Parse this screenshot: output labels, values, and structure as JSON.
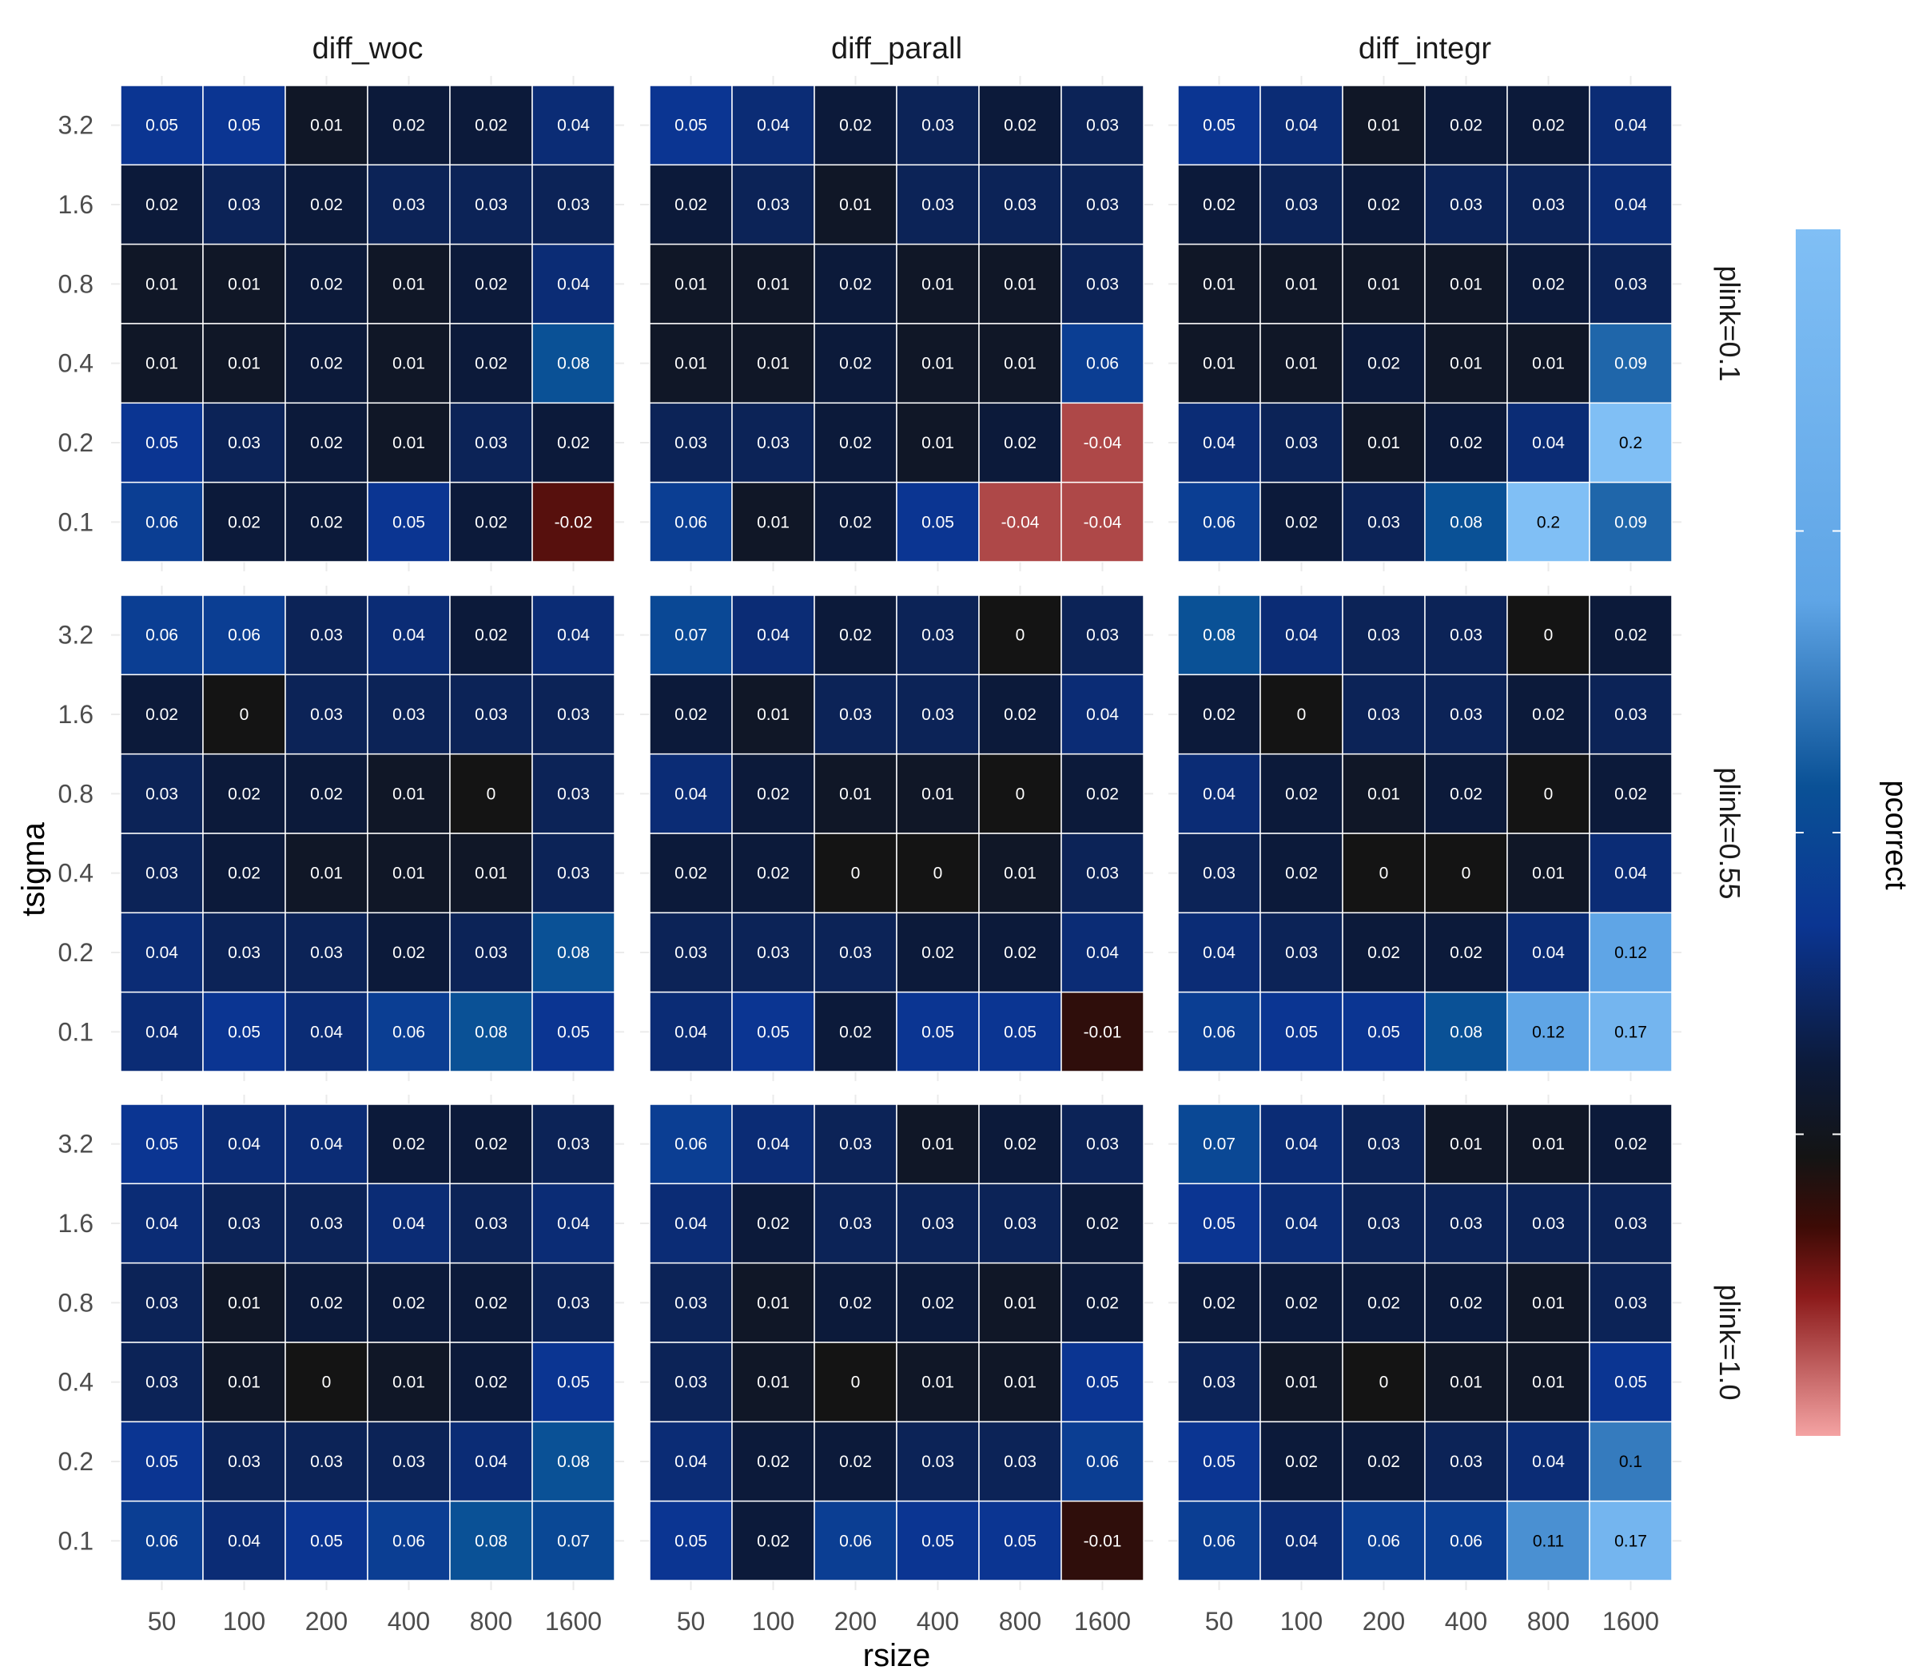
{
  "chart_data": {
    "type": "heatmap",
    "xlabel": "rsize",
    "ylabel": "tsigma",
    "x_categories": [
      "50",
      "100",
      "200",
      "400",
      "800",
      "1600"
    ],
    "y_categories": [
      "3.2",
      "1.6",
      "0.8",
      "0.4",
      "0.2",
      "0.1"
    ],
    "columns": [
      "diff_woc",
      "diff_parall",
      "diff_integr"
    ],
    "rows": [
      "plink=0.1",
      "plink=0.55",
      "plink=1.0"
    ],
    "legend": {
      "title": "pcorrect",
      "placement": "right"
    },
    "color_scale": {
      "low": -0.04,
      "high": 0.2,
      "stops": [
        {
          "value": -0.06,
          "color": "#f4a3a3"
        },
        {
          "value": -0.03,
          "color": "#8b1a1a"
        },
        {
          "value": -0.015,
          "color": "#3d0b06"
        },
        {
          "value": 0.0,
          "color": "#141414"
        },
        {
          "value": 0.02,
          "color": "#0c1a3a"
        },
        {
          "value": 0.05,
          "color": "#0b3592"
        },
        {
          "value": 0.08,
          "color": "#0a5196"
        },
        {
          "value": 0.12,
          "color": "#5fa5e6"
        },
        {
          "value": 0.2,
          "color": "#80bff5"
        }
      ]
    },
    "panels": [
      [
        {
          "values": [
            [
              "0.05",
              "0.05",
              "0.01",
              "0.02",
              "0.02",
              "0.04"
            ],
            [
              "0.02",
              "0.03",
              "0.02",
              "0.03",
              "0.03",
              "0.03"
            ],
            [
              "0.01",
              "0.01",
              "0.02",
              "0.01",
              "0.02",
              "0.04"
            ],
            [
              "0.01",
              "0.01",
              "0.02",
              "0.01",
              "0.02",
              "0.08"
            ],
            [
              "0.05",
              "0.03",
              "0.02",
              "0.01",
              "0.03",
              "0.02"
            ],
            [
              "0.06",
              "0.02",
              "0.02",
              "0.05",
              "0.02",
              "-0.02"
            ]
          ]
        },
        {
          "values": [
            [
              "0.05",
              "0.04",
              "0.02",
              "0.03",
              "0.02",
              "0.03"
            ],
            [
              "0.02",
              "0.03",
              "0.01",
              "0.03",
              "0.03",
              "0.03"
            ],
            [
              "0.01",
              "0.01",
              "0.02",
              "0.01",
              "0.01",
              "0.03"
            ],
            [
              "0.01",
              "0.01",
              "0.02",
              "0.01",
              "0.01",
              "0.06"
            ],
            [
              "0.03",
              "0.03",
              "0.02",
              "0.01",
              "0.02",
              "-0.04"
            ],
            [
              "0.06",
              "0.01",
              "0.02",
              "0.05",
              "-0.04",
              "-0.04"
            ]
          ]
        },
        {
          "values": [
            [
              "0.05",
              "0.04",
              "0.01",
              "0.02",
              "0.02",
              "0.04"
            ],
            [
              "0.02",
              "0.03",
              "0.02",
              "0.03",
              "0.03",
              "0.04"
            ],
            [
              "0.01",
              "0.01",
              "0.01",
              "0.01",
              "0.02",
              "0.03"
            ],
            [
              "0.01",
              "0.01",
              "0.02",
              "0.01",
              "0.01",
              "0.09"
            ],
            [
              "0.04",
              "0.03",
              "0.01",
              "0.02",
              "0.04",
              "0.2"
            ],
            [
              "0.06",
              "0.02",
              "0.03",
              "0.08",
              "0.2",
              "0.09"
            ]
          ]
        }
      ],
      [
        {
          "values": [
            [
              "0.06",
              "0.06",
              "0.03",
              "0.04",
              "0.02",
              "0.04"
            ],
            [
              "0.02",
              "0",
              "0.03",
              "0.03",
              "0.03",
              "0.03"
            ],
            [
              "0.03",
              "0.02",
              "0.02",
              "0.01",
              "0",
              "0.03"
            ],
            [
              "0.03",
              "0.02",
              "0.01",
              "0.01",
              "0.01",
              "0.03"
            ],
            [
              "0.04",
              "0.03",
              "0.03",
              "0.02",
              "0.03",
              "0.08"
            ],
            [
              "0.04",
              "0.05",
              "0.04",
              "0.06",
              "0.08",
              "0.05"
            ]
          ]
        },
        {
          "values": [
            [
              "0.07",
              "0.04",
              "0.02",
              "0.03",
              "0",
              "0.03"
            ],
            [
              "0.02",
              "0.01",
              "0.03",
              "0.03",
              "0.02",
              "0.04"
            ],
            [
              "0.04",
              "0.02",
              "0.01",
              "0.01",
              "0",
              "0.02"
            ],
            [
              "0.02",
              "0.02",
              "0",
              "0",
              "0.01",
              "0.03"
            ],
            [
              "0.03",
              "0.03",
              "0.03",
              "0.02",
              "0.02",
              "0.04"
            ],
            [
              "0.04",
              "0.05",
              "0.02",
              "0.05",
              "0.05",
              "-0.01"
            ]
          ]
        },
        {
          "values": [
            [
              "0.08",
              "0.04",
              "0.03",
              "0.03",
              "0",
              "0.02"
            ],
            [
              "0.02",
              "0",
              "0.03",
              "0.03",
              "0.02",
              "0.03"
            ],
            [
              "0.04",
              "0.02",
              "0.01",
              "0.02",
              "0",
              "0.02"
            ],
            [
              "0.03",
              "0.02",
              "0",
              "0",
              "0.01",
              "0.04"
            ],
            [
              "0.04",
              "0.03",
              "0.02",
              "0.02",
              "0.04",
              "0.12"
            ],
            [
              "0.06",
              "0.05",
              "0.05",
              "0.08",
              "0.12",
              "0.17"
            ]
          ]
        }
      ],
      [
        {
          "values": [
            [
              "0.05",
              "0.04",
              "0.04",
              "0.02",
              "0.02",
              "0.03"
            ],
            [
              "0.04",
              "0.03",
              "0.03",
              "0.04",
              "0.03",
              "0.04"
            ],
            [
              "0.03",
              "0.01",
              "0.02",
              "0.02",
              "0.02",
              "0.03"
            ],
            [
              "0.03",
              "0.01",
              "0",
              "0.01",
              "0.02",
              "0.05"
            ],
            [
              "0.05",
              "0.03",
              "0.03",
              "0.03",
              "0.04",
              "0.08"
            ],
            [
              "0.06",
              "0.04",
              "0.05",
              "0.06",
              "0.08",
              "0.07"
            ]
          ]
        },
        {
          "values": [
            [
              "0.06",
              "0.04",
              "0.03",
              "0.01",
              "0.02",
              "0.03"
            ],
            [
              "0.04",
              "0.02",
              "0.03",
              "0.03",
              "0.03",
              "0.02"
            ],
            [
              "0.03",
              "0.01",
              "0.02",
              "0.02",
              "0.01",
              "0.02"
            ],
            [
              "0.03",
              "0.01",
              "0",
              "0.01",
              "0.01",
              "0.05"
            ],
            [
              "0.04",
              "0.02",
              "0.02",
              "0.03",
              "0.03",
              "0.06"
            ],
            [
              "0.05",
              "0.02",
              "0.06",
              "0.05",
              "0.05",
              "-0.01"
            ]
          ]
        },
        {
          "values": [
            [
              "0.07",
              "0.04",
              "0.03",
              "0.01",
              "0.01",
              "0.02"
            ],
            [
              "0.05",
              "0.04",
              "0.03",
              "0.03",
              "0.03",
              "0.03"
            ],
            [
              "0.02",
              "0.02",
              "0.02",
              "0.02",
              "0.01",
              "0.03"
            ],
            [
              "0.03",
              "0.01",
              "0",
              "0.01",
              "0.01",
              "0.05"
            ],
            [
              "0.05",
              "0.02",
              "0.02",
              "0.03",
              "0.04",
              "0.1"
            ],
            [
              "0.06",
              "0.04",
              "0.06",
              "0.06",
              "0.11",
              "0.17"
            ]
          ]
        }
      ]
    ]
  }
}
